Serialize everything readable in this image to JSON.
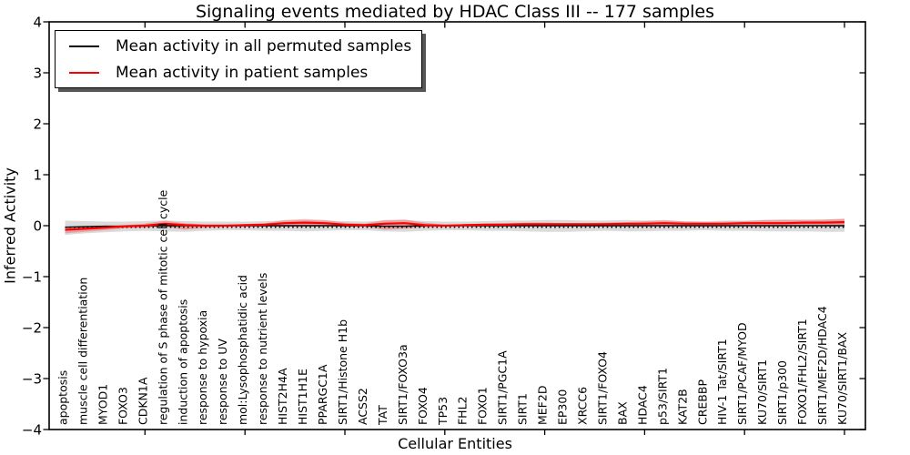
{
  "legend": {
    "items": [
      {
        "label": "Mean activity in all permuted samples",
        "color": "#000000"
      },
      {
        "label": "Mean activity in patient samples",
        "color": "#ff0000"
      }
    ]
  },
  "chart_data": {
    "type": "line",
    "title": "Signaling events mediated by HDAC Class III -- 177 samples",
    "xlabel": "Cellular Entities",
    "ylabel": "Inferred Activity",
    "ylim": [
      -4,
      4
    ],
    "yticks": [
      -4,
      -3,
      -2,
      -1,
      0,
      1,
      2,
      3,
      4
    ],
    "xtick_every": 5,
    "grid": false,
    "legend_position": "upper-left",
    "baseline_dotted": -0.03,
    "categories": [
      "apoptosis",
      "muscle cell differentiation",
      "MYOD1",
      "FOXO3",
      "CDKN1A",
      "regulation of S phase of mitotic cell cycle",
      "induction of apoptosis",
      "response to hypoxia",
      "response to UV",
      "mol:Lysophosphatidic acid",
      "response to nutrient levels",
      "HIST2H4A",
      "HIST1H1E",
      "PPARGC1A",
      "SIRT1/Histone H1b",
      "ACSS2",
      "TAT",
      "SIRT1/FOXO3a",
      "FOXO4",
      "TP53",
      "FHL2",
      "FOXO1",
      "SIRT1/PGC1A",
      "SIRT1",
      "MEF2D",
      "EP300",
      "XRCC6",
      "SIRT1/FOXO4",
      "BAX",
      "HDAC4",
      "p53/SIRT1",
      "KAT2B",
      "CREBBP",
      "HIV-1 Tat/SIRT1",
      "SIRT1/PCAF/MYOD",
      "KU70/SIRT1",
      "SIRT1/p300",
      "FOXO1/FHL2/SIRT1",
      "SIRT1/MEF2D/HDAC4",
      "KU70/SIRT1/BAX"
    ],
    "series": [
      {
        "name": "Mean activity in all permuted samples",
        "color": "#000000",
        "style": "solid",
        "width": 1.4,
        "values": [
          -0.03,
          -0.02,
          -0.01,
          -0.01,
          0,
          0,
          0,
          0,
          0,
          0,
          0,
          0,
          0,
          0,
          0,
          0,
          -0.01,
          -0.01,
          0,
          0,
          0,
          0,
          0,
          0,
          0,
          0,
          0,
          0,
          0,
          0,
          0,
          0,
          0,
          0,
          0,
          0,
          0,
          0,
          0,
          0
        ]
      },
      {
        "name": "Mean activity in patient samples",
        "color": "#ff0000",
        "style": "solid",
        "width": 2.2,
        "values": [
          -0.08,
          -0.06,
          -0.04,
          -0.01,
          0,
          0.04,
          0.01,
          0,
          0,
          0.01,
          0.02,
          0.05,
          0.06,
          0.05,
          0.02,
          0.01,
          0.04,
          0.05,
          0.01,
          0,
          0.01,
          0.02,
          0.02,
          0.03,
          0.03,
          0.03,
          0.03,
          0.03,
          0.04,
          0.04,
          0.05,
          0.04,
          0.04,
          0.04,
          0.05,
          0.05,
          0.05,
          0.06,
          0.06,
          0.07
        ]
      }
    ],
    "bands": [
      {
        "name": "permuted-samples-spread",
        "color": "#999999",
        "opacity": 0.35,
        "top": [
          0.1,
          0.09,
          0.08,
          0.08,
          0.09,
          0.1,
          0.09,
          0.08,
          0.08,
          0.08,
          0.09,
          0.1,
          0.11,
          0.1,
          0.09,
          0.08,
          0.1,
          0.11,
          0.09,
          0.08,
          0.08,
          0.09,
          0.1,
          0.1,
          0.11,
          0.11,
          0.1,
          0.1,
          0.11,
          0.1,
          0.1,
          0.09,
          0.09,
          0.1,
          0.1,
          0.11,
          0.11,
          0.12,
          0.12,
          0.13
        ],
        "bottom": [
          -0.18,
          -0.15,
          -0.13,
          -0.11,
          -0.1,
          -0.11,
          -0.12,
          -0.1,
          -0.09,
          -0.09,
          -0.1,
          -0.1,
          -0.11,
          -0.1,
          -0.09,
          -0.09,
          -0.11,
          -0.12,
          -0.1,
          -0.09,
          -0.09,
          -0.1,
          -0.1,
          -0.11,
          -0.12,
          -0.12,
          -0.11,
          -0.1,
          -0.11,
          -0.11,
          -0.1,
          -0.1,
          -0.09,
          -0.1,
          -0.1,
          -0.11,
          -0.11,
          -0.11,
          -0.12,
          -0.12
        ]
      },
      {
        "name": "patient-samples-spread",
        "color": "#ff0000",
        "opacity": 0.25,
        "top": [
          -0.02,
          -0.02,
          -0.01,
          0.01,
          0.04,
          0.1,
          0.05,
          0.02,
          0.02,
          0.03,
          0.05,
          0.11,
          0.13,
          0.11,
          0.06,
          0.04,
          0.11,
          0.12,
          0.06,
          0.02,
          0.03,
          0.04,
          0.05,
          0.06,
          0.06,
          0.05,
          0.05,
          0.06,
          0.07,
          0.09,
          0.11,
          0.08,
          0.07,
          0.08,
          0.09,
          0.11,
          0.12,
          0.11,
          0.12,
          0.14
        ],
        "bottom": [
          -0.15,
          -0.12,
          -0.09,
          -0.05,
          -0.04,
          -0.02,
          -0.08,
          -0.04,
          -0.02,
          -0.02,
          -0.01,
          -0.02,
          -0.02,
          -0.01,
          -0.02,
          -0.02,
          -0.08,
          -0.06,
          -0.03,
          -0.02,
          -0.01,
          -0.01,
          0,
          0,
          0,
          0,
          0,
          0,
          0,
          0,
          0.01,
          0,
          0.01,
          0.01,
          0.01,
          0.01,
          0.01,
          0.02,
          0.01,
          0
        ]
      }
    ]
  }
}
